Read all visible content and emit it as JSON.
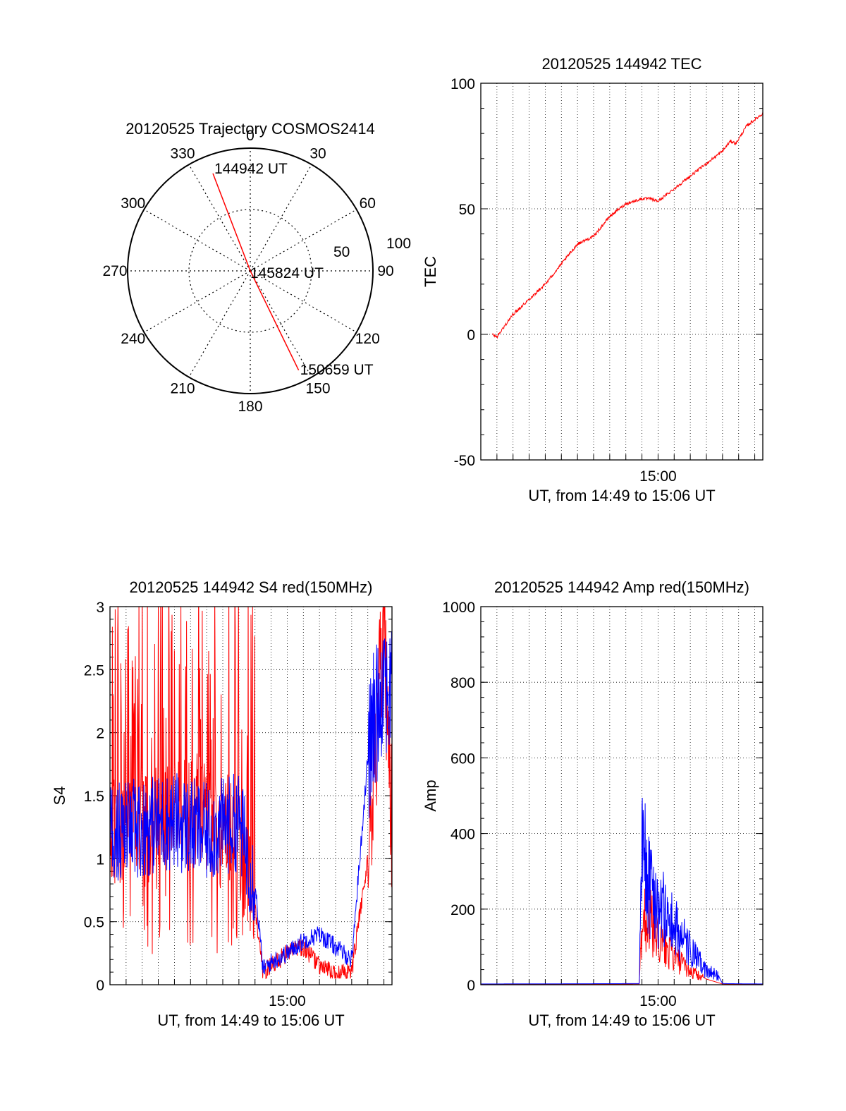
{
  "chart_data": [
    {
      "type": "polar",
      "title": "20120525 Trajectory COSMOS2414",
      "azimuth_labels": [
        "0",
        "30",
        "60",
        "90",
        "120",
        "150",
        "180",
        "210",
        "240",
        "270",
        "300",
        "330"
      ],
      "radial_ticks": [
        "50",
        "100"
      ],
      "rlim": [
        0,
        100
      ],
      "grid": true,
      "series": [
        {
          "color": "#ff0000",
          "points": [
            {
              "az": 339,
              "r": 85
            },
            {
              "az": 180,
              "r": 0
            },
            {
              "az": 154,
              "r": 90
            }
          ]
        }
      ],
      "annotations": [
        {
          "text": "144942 UT",
          "az": 339,
          "r": 85
        },
        {
          "text": "145824 UT",
          "az": 180,
          "r": 0
        },
        {
          "text": "150659 UT",
          "az": 154,
          "r": 90
        }
      ]
    },
    {
      "type": "line",
      "title": "20120525 144942 TEC",
      "xlabel": "UT, from 14:49 to 15:06 UT",
      "ylabel": "TEC",
      "xlim": [
        "14:49:00",
        "15:06:30"
      ],
      "ylim": [
        -50,
        100
      ],
      "yticks": [
        "-50",
        "0",
        "50",
        "100"
      ],
      "xticks": [
        {
          "label": "15:00",
          "t": "15:00:00"
        }
      ],
      "grid": true,
      "series": [
        {
          "color": "#ff0000",
          "x": [
            "14:49:42",
            "14:50:00",
            "14:51:00",
            "14:52:00",
            "14:53:00",
            "14:54:00",
            "14:55:00",
            "14:56:00",
            "14:57:00",
            "14:58:00",
            "14:59:00",
            "14:59:30",
            "15:00:00",
            "15:01:00",
            "15:02:00",
            "15:03:00",
            "15:04:00",
            "15:04:30",
            "15:04:50",
            "15:05:30",
            "15:06:30"
          ],
          "y": [
            0,
            -1,
            8,
            14,
            20,
            28,
            36,
            39,
            47,
            52,
            54,
            54,
            53,
            58,
            63,
            68,
            73,
            77,
            76,
            83,
            88
          ]
        }
      ]
    },
    {
      "type": "line",
      "title": "20120525 144942 S4 red(150MHz)",
      "xlabel": "UT, from 14:49 to 15:06 UT",
      "ylabel": "S4",
      "xlim": [
        "14:49:00",
        "15:06:30"
      ],
      "ylim": [
        0,
        3
      ],
      "yticks": [
        "0",
        "0.5",
        "1",
        "1.5",
        "2",
        "2.5",
        "3"
      ],
      "xticks": [
        {
          "label": "15:00",
          "t": "15:00:00"
        }
      ],
      "grid": true,
      "series": [
        {
          "color": "#ff0000",
          "x": [
            "14:49:00",
            "14:53:00",
            "14:55:00",
            "14:57:00",
            "14:58:00",
            "14:58:30",
            "14:59:00",
            "15:00:00",
            "15:01:00",
            "15:02:00",
            "15:03:00",
            "15:04:00",
            "15:05:00",
            "15:06:00",
            "15:06:30"
          ],
          "y": [
            1.2,
            1.4,
            1.3,
            1.1,
            0.6,
            0.1,
            0.15,
            0.25,
            0.3,
            0.15,
            0.08,
            0.1,
            1.0,
            2.8,
            1.2
          ]
        },
        {
          "color": "#0000ff",
          "x": [
            "14:49:00",
            "14:51:00",
            "14:53:00",
            "14:55:00",
            "14:57:00",
            "14:58:00",
            "14:58:30",
            "14:59:00",
            "15:00:00",
            "15:01:00",
            "15:02:00",
            "15:03:00",
            "15:04:00",
            "15:05:00",
            "15:06:00",
            "15:06:30"
          ],
          "y": [
            1.2,
            1.25,
            1.3,
            1.2,
            1.3,
            0.8,
            0.12,
            0.18,
            0.25,
            0.35,
            0.4,
            0.3,
            0.2,
            1.8,
            2.5,
            2.2
          ]
        }
      ]
    },
    {
      "type": "line",
      "title": "20120525 144942 Amp red(150MHz)",
      "xlabel": "UT, from 14:49 to 15:06 UT",
      "ylabel": "Amp",
      "xlim": [
        "14:49:00",
        "15:06:30"
      ],
      "ylim": [
        0,
        1000
      ],
      "yticks": [
        "0",
        "200",
        "400",
        "600",
        "800",
        "1000"
      ],
      "xticks": [
        {
          "label": "15:00",
          "t": "15:00:00"
        }
      ],
      "grid": true,
      "series": [
        {
          "color": "#ff0000",
          "x": [
            "14:49:00",
            "14:58:50",
            "14:59:00",
            "14:59:20",
            "15:00:00",
            "15:01:00",
            "15:02:00",
            "15:03:00",
            "15:04:00",
            "15:06:30"
          ],
          "y": [
            1,
            2,
            180,
            210,
            130,
            80,
            40,
            15,
            2,
            1
          ]
        },
        {
          "color": "#0000ff",
          "x": [
            "14:49:00",
            "14:58:50",
            "14:59:00",
            "14:59:20",
            "15:00:00",
            "15:01:00",
            "15:02:00",
            "15:03:00",
            "15:03:40",
            "15:04:00",
            "15:06:30"
          ],
          "y": [
            2,
            3,
            400,
            320,
            240,
            170,
            100,
            40,
            30,
            3,
            2
          ]
        }
      ]
    }
  ]
}
